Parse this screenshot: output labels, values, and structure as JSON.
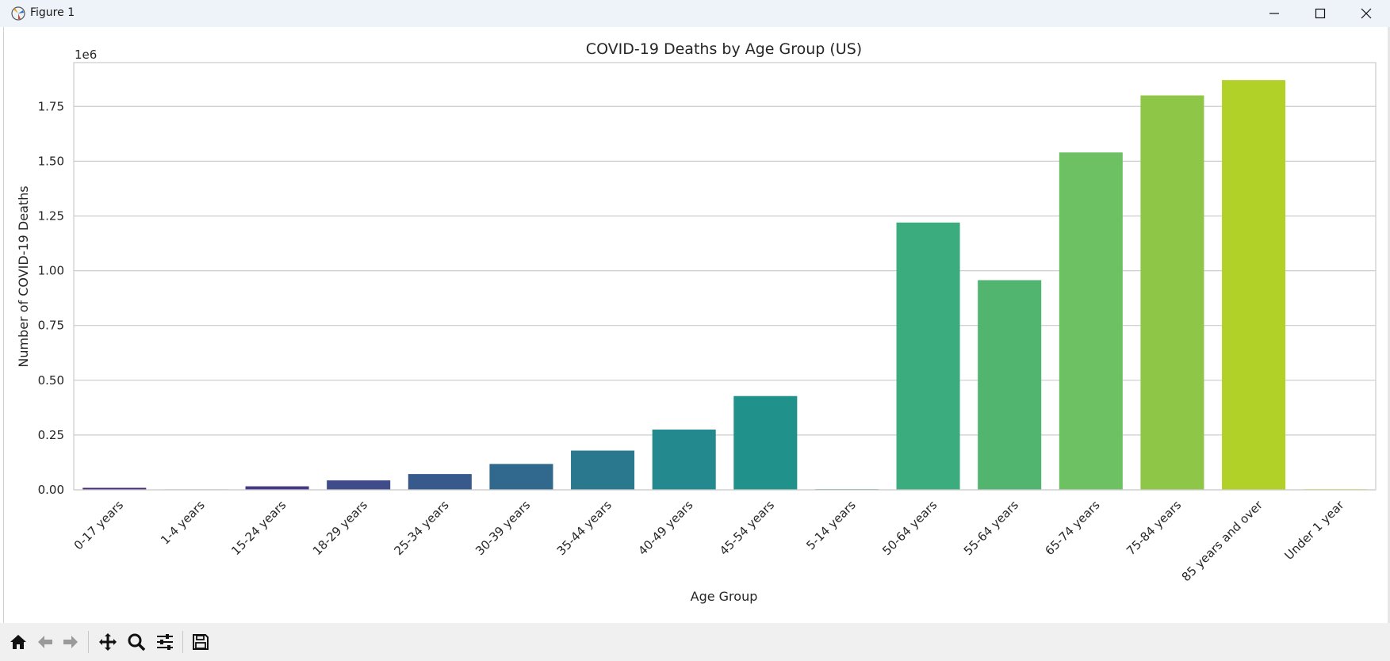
{
  "window": {
    "title": "Figure 1"
  },
  "colors": {
    "background": "#ffffff",
    "grid": "#cccccc",
    "axes": "#cccccc",
    "text": "#262626"
  },
  "chart_data": {
    "type": "bar",
    "title": "COVID-19 Deaths by Age Group (US)",
    "xlabel": "Age Group",
    "ylabel": "Number of COVID-19 Deaths",
    "offset_label": "1e6",
    "ylim": [
      0,
      1.95
    ],
    "yticks": [
      0.0,
      0.25,
      0.5,
      0.75,
      1.0,
      1.25,
      1.5,
      1.75
    ],
    "ytick_labels": [
      "0.00",
      "0.25",
      "0.50",
      "0.75",
      "1.00",
      "1.25",
      "1.50",
      "1.75"
    ],
    "grid": true,
    "categories": [
      "0-17 years",
      "1-4 years",
      "15-24 years",
      "18-29 years",
      "25-34 years",
      "30-39 years",
      "35-44 years",
      "40-49 years",
      "45-54 years",
      "5-14 years",
      "50-64 years",
      "55-64 years",
      "65-74 years",
      "75-84 years",
      "85 years and over",
      "Under 1 year"
    ],
    "values": [
      0.009,
      0.002,
      0.016,
      0.043,
      0.072,
      0.118,
      0.179,
      0.275,
      0.428,
      0.003,
      1.22,
      0.957,
      1.54,
      1.8,
      1.87,
      0.003
    ],
    "colors": [
      "#472c7a",
      "#482071",
      "#443a83",
      "#3e4c8a",
      "#38598c",
      "#31688e",
      "#2a788e",
      "#23898e",
      "#21918c",
      "#1fa188",
      "#3aac7e",
      "#52b56f",
      "#6dc162",
      "#8ec648",
      "#b1d129",
      "#dde318"
    ]
  },
  "toolbar": {
    "home": "home-icon",
    "back": "back-arrow-icon",
    "forward": "forward-arrow-icon",
    "pan": "pan-icon",
    "zoom": "zoom-icon",
    "configure": "configure-subplots-icon",
    "save": "save-icon"
  }
}
